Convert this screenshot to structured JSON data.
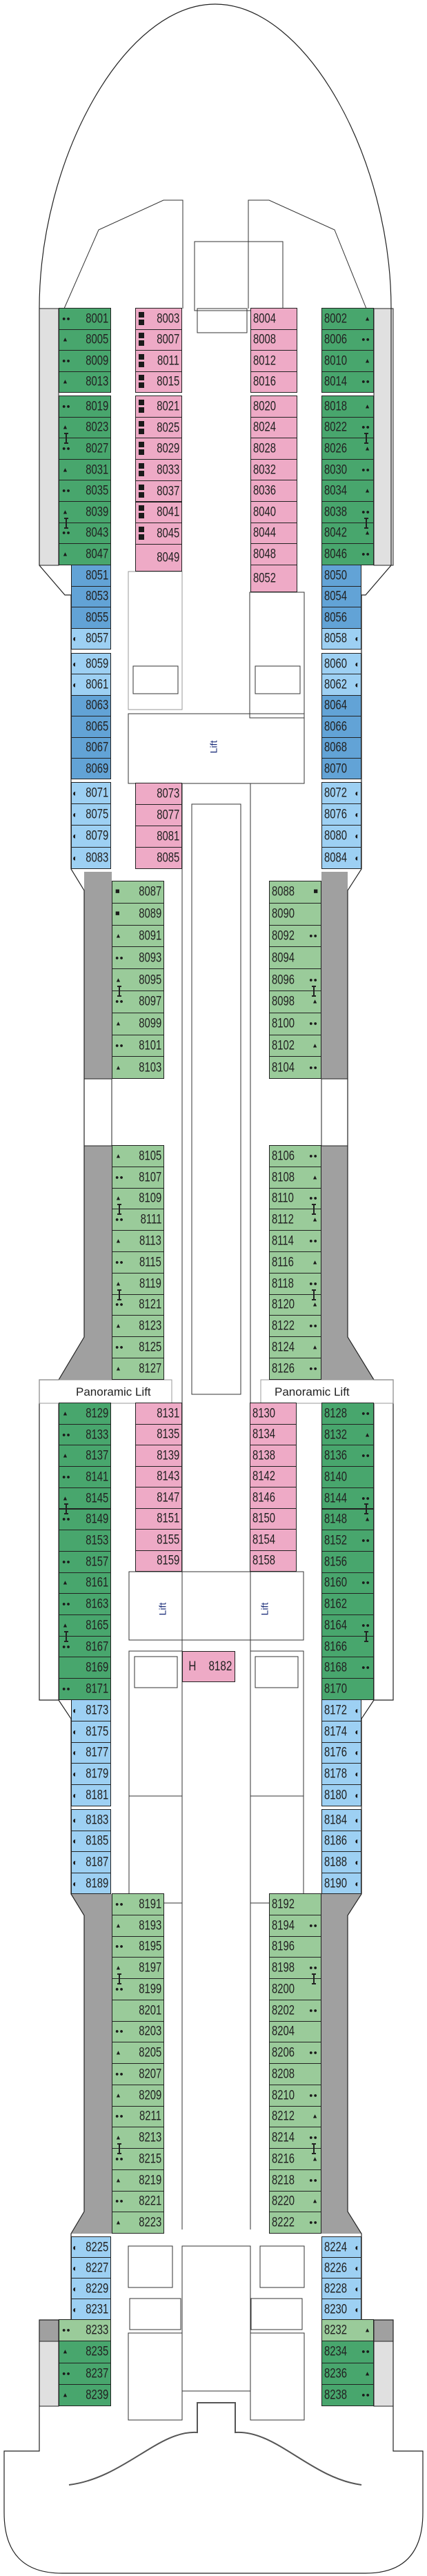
{
  "colors": {
    "green_dark": "#48a66d",
    "green_light": "#9acb9a",
    "pink": "#eeaac6",
    "blue_dark": "#62a3d6",
    "blue_light": "#9dd0f3",
    "grey_light": "#e0e0e0",
    "grey_dark": "#a0a0a0",
    "lift_text": "#1c2f7a"
  },
  "labels": {
    "lift_forward": "Lift",
    "lift_mid_port": "Lift",
    "lift_mid_starboard": "Lift",
    "panoramic_lift_port": "Panoramic Lift",
    "panoramic_lift_starboard": "Panoramic Lift"
  },
  "special_cabin": {
    "mark": "H",
    "no": "8182"
  },
  "blocks": [
    {
      "side": "port",
      "color": "green_dark",
      "cabins": [
        {
          "no": "8001",
          "icon": "dots"
        },
        {
          "no": "8005",
          "icon": "tri"
        },
        {
          "no": "8009",
          "icon": "dots"
        },
        {
          "no": "8013",
          "icon": "tri"
        }
      ]
    },
    {
      "side": "port",
      "color": "green_dark",
      "cabins": [
        {
          "no": "8019",
          "icon": "dots"
        },
        {
          "no": "8023",
          "icon": "tri",
          "link": "8027"
        },
        {
          "no": "8027",
          "icon": "dots"
        },
        {
          "no": "8031",
          "icon": "tri"
        },
        {
          "no": "8035",
          "icon": "dots"
        },
        {
          "no": "8039",
          "icon": "tri",
          "link": "8043"
        },
        {
          "no": "8043",
          "icon": "dots"
        },
        {
          "no": "8047",
          "icon": "tri"
        }
      ]
    },
    {
      "side": "starboard",
      "color": "green_dark",
      "cabins": [
        {
          "no": "8002",
          "icon": "tri"
        },
        {
          "no": "8006",
          "icon": "dots"
        },
        {
          "no": "8010",
          "icon": "tri"
        },
        {
          "no": "8014",
          "icon": "dots"
        }
      ]
    },
    {
      "side": "starboard",
      "color": "green_dark",
      "cabins": [
        {
          "no": "8018",
          "icon": "tri"
        },
        {
          "no": "8022",
          "icon": "dots",
          "link": "8026"
        },
        {
          "no": "8026",
          "icon": "tri"
        },
        {
          "no": "8030",
          "icon": "dots"
        },
        {
          "no": "8034",
          "icon": "tri"
        },
        {
          "no": "8038",
          "icon": "dots",
          "link": "8042"
        },
        {
          "no": "8042",
          "icon": "tri"
        },
        {
          "no": "8046",
          "icon": "dots"
        }
      ]
    },
    {
      "side": "port",
      "color": "pink",
      "cabins": [
        {
          "no": "8003",
          "icon": "squares"
        },
        {
          "no": "8007",
          "icon": "squares"
        },
        {
          "no": "8011",
          "icon": "squares"
        },
        {
          "no": "8015",
          "icon": "squares"
        }
      ]
    },
    {
      "side": "port",
      "color": "pink",
      "cabins": [
        {
          "no": "8021",
          "icon": "squares"
        },
        {
          "no": "8025",
          "icon": "squares"
        },
        {
          "no": "8029",
          "icon": "squares"
        },
        {
          "no": "8033",
          "icon": "squares"
        },
        {
          "no": "8037",
          "icon": "squares"
        },
        {
          "no": "8041",
          "icon": "squares"
        },
        {
          "no": "8045",
          "icon": "squares"
        }
      ]
    },
    {
      "side": "port",
      "color": "pink",
      "cabins": [
        {
          "no": "8049"
        }
      ]
    },
    {
      "side": "starboard",
      "color": "pink",
      "cabins": [
        {
          "no": "8004"
        },
        {
          "no": "8008"
        },
        {
          "no": "8012"
        },
        {
          "no": "8016"
        }
      ]
    },
    {
      "side": "starboard",
      "color": "pink",
      "cabins": [
        {
          "no": "8020"
        },
        {
          "no": "8024"
        },
        {
          "no": "8028"
        },
        {
          "no": "8032"
        },
        {
          "no": "8036"
        },
        {
          "no": "8040"
        },
        {
          "no": "8044"
        },
        {
          "no": "8048"
        }
      ]
    },
    {
      "side": "starboard",
      "color": "pink",
      "cabins": [
        {
          "no": "8052"
        }
      ]
    },
    {
      "side": "port",
      "color": "blue_dark",
      "cabins": [
        {
          "no": "8051"
        },
        {
          "no": "8053"
        },
        {
          "no": "8055"
        },
        {
          "no": "8057",
          "icon": "half",
          "color": "blue_light"
        }
      ]
    },
    {
      "side": "port",
      "color": "blue_dark",
      "cabins": [
        {
          "no": "8059",
          "icon": "half",
          "color": "blue_light"
        },
        {
          "no": "8061",
          "icon": "half",
          "color": "blue_light"
        },
        {
          "no": "8063"
        },
        {
          "no": "8065"
        },
        {
          "no": "8067"
        },
        {
          "no": "8069"
        }
      ]
    },
    {
      "side": "port",
      "color": "blue_light",
      "cabins": [
        {
          "no": "8071",
          "icon": "half"
        },
        {
          "no": "8075",
          "icon": "half"
        },
        {
          "no": "8079",
          "icon": "half"
        },
        {
          "no": "8083",
          "icon": "half"
        }
      ]
    },
    {
      "side": "starboard",
      "color": "blue_dark",
      "cabins": [
        {
          "no": "8050"
        },
        {
          "no": "8054"
        },
        {
          "no": "8056"
        },
        {
          "no": "8058",
          "icon": "half",
          "color": "blue_light"
        }
      ]
    },
    {
      "side": "starboard",
      "color": "blue_dark",
      "cabins": [
        {
          "no": "8060",
          "icon": "half",
          "color": "blue_light"
        },
        {
          "no": "8062",
          "icon": "half",
          "color": "blue_light"
        },
        {
          "no": "8064"
        },
        {
          "no": "8066"
        },
        {
          "no": "8068"
        },
        {
          "no": "8070"
        }
      ]
    },
    {
      "side": "starboard",
      "color": "blue_light",
      "cabins": [
        {
          "no": "8072",
          "icon": "half"
        },
        {
          "no": "8076",
          "icon": "half"
        },
        {
          "no": "8080",
          "icon": "half"
        },
        {
          "no": "8084",
          "icon": "half"
        }
      ]
    },
    {
      "side": "port",
      "color": "pink",
      "cabins": [
        {
          "no": "8073"
        },
        {
          "no": "8077"
        },
        {
          "no": "8081"
        },
        {
          "no": "8085"
        }
      ]
    },
    {
      "side": "port",
      "color": "green_light",
      "cabins": [
        {
          "no": "8087",
          "icon": "square"
        },
        {
          "no": "8089",
          "icon": "square"
        },
        {
          "no": "8091",
          "icon": "tri"
        },
        {
          "no": "8093",
          "icon": "dots"
        },
        {
          "no": "8095",
          "icon": "tri",
          "link": "8097"
        },
        {
          "no": "8097",
          "icon": "dots"
        },
        {
          "no": "8099",
          "icon": "tri"
        },
        {
          "no": "8101",
          "icon": "dots"
        },
        {
          "no": "8103",
          "icon": "tri"
        }
      ]
    },
    {
      "side": "starboard",
      "color": "green_light",
      "cabins": [
        {
          "no": "8088",
          "icon": "square"
        },
        {
          "no": "8090"
        },
        {
          "no": "8092",
          "icon": "dots"
        },
        {
          "no": "8094"
        },
        {
          "no": "8096",
          "icon": "dots",
          "link": "8098"
        },
        {
          "no": "8098",
          "icon": "tri"
        },
        {
          "no": "8100",
          "icon": "dots"
        },
        {
          "no": "8102",
          "icon": "tri"
        },
        {
          "no": "8104",
          "icon": "dots"
        }
      ]
    },
    {
      "side": "port",
      "color": "green_light",
      "cabins": [
        {
          "no": "8105",
          "icon": "tri"
        },
        {
          "no": "8107",
          "icon": "dots"
        },
        {
          "no": "8109",
          "icon": "tri",
          "link": "8111"
        },
        {
          "no": "8111",
          "icon": "dots"
        },
        {
          "no": "8113",
          "icon": "tri"
        },
        {
          "no": "8115",
          "icon": "dots"
        },
        {
          "no": "8119",
          "icon": "tri",
          "link": "8121"
        },
        {
          "no": "8121",
          "icon": "dots"
        },
        {
          "no": "8123",
          "icon": "tri"
        },
        {
          "no": "8125",
          "icon": "dots"
        },
        {
          "no": "8127",
          "icon": "tri"
        }
      ]
    },
    {
      "side": "starboard",
      "color": "green_light",
      "cabins": [
        {
          "no": "8106",
          "icon": "dots"
        },
        {
          "no": "8108",
          "icon": "tri"
        },
        {
          "no": "8110",
          "icon": "dots",
          "link": "8112"
        },
        {
          "no": "8112",
          "icon": "tri"
        },
        {
          "no": "8114",
          "icon": "dots"
        },
        {
          "no": "8116",
          "icon": "tri"
        },
        {
          "no": "8118",
          "icon": "dots",
          "link": "8120"
        },
        {
          "no": "8120",
          "icon": "tri"
        },
        {
          "no": "8122",
          "icon": "dots"
        },
        {
          "no": "8124",
          "icon": "tri"
        },
        {
          "no": "8126",
          "icon": "dots"
        }
      ]
    },
    {
      "side": "port",
      "color": "green_dark",
      "cabins": [
        {
          "no": "8129",
          "icon": "tri"
        },
        {
          "no": "8133",
          "icon": "dots"
        },
        {
          "no": "8137",
          "icon": "tri"
        },
        {
          "no": "8141",
          "icon": "dots"
        },
        {
          "no": "8145",
          "icon": "tri",
          "link": "8149"
        },
        {
          "no": "8149",
          "icon": "dots"
        },
        {
          "no": "8153"
        },
        {
          "no": "8157",
          "icon": "dots"
        },
        {
          "no": "8161",
          "icon": "tri"
        },
        {
          "no": "8163",
          "icon": "dots"
        },
        {
          "no": "8165",
          "icon": "tri",
          "link": "8167"
        },
        {
          "no": "8167",
          "icon": "dots"
        },
        {
          "no": "8169"
        },
        {
          "no": "8171",
          "icon": "dots"
        }
      ]
    },
    {
      "side": "starboard",
      "color": "green_dark",
      "cabins": [
        {
          "no": "8128",
          "icon": "dots"
        },
        {
          "no": "8132",
          "icon": "tri"
        },
        {
          "no": "8136",
          "icon": "dots"
        },
        {
          "no": "8140"
        },
        {
          "no": "8144",
          "icon": "dots",
          "link": "8148"
        },
        {
          "no": "8148",
          "icon": "tri"
        },
        {
          "no": "8152",
          "icon": "dots"
        },
        {
          "no": "8156"
        },
        {
          "no": "8160",
          "icon": "dots"
        },
        {
          "no": "8162"
        },
        {
          "no": "8164",
          "icon": "dots",
          "link": "8166"
        },
        {
          "no": "8166"
        },
        {
          "no": "8168",
          "icon": "dots"
        },
        {
          "no": "8170"
        }
      ]
    },
    {
      "side": "port",
      "color": "pink",
      "cabins": [
        {
          "no": "8131"
        },
        {
          "no": "8135"
        },
        {
          "no": "8139"
        },
        {
          "no": "8143"
        },
        {
          "no": "8147"
        },
        {
          "no": "8151"
        },
        {
          "no": "8155"
        },
        {
          "no": "8159"
        }
      ]
    },
    {
      "side": "starboard",
      "color": "pink",
      "cabins": [
        {
          "no": "8130"
        },
        {
          "no": "8134"
        },
        {
          "no": "8138"
        },
        {
          "no": "8142"
        },
        {
          "no": "8146"
        },
        {
          "no": "8150"
        },
        {
          "no": "8154"
        },
        {
          "no": "8158"
        }
      ]
    },
    {
      "side": "port",
      "color": "blue_light",
      "cabins": [
        {
          "no": "8173",
          "icon": "half"
        },
        {
          "no": "8175",
          "icon": "half"
        },
        {
          "no": "8177",
          "icon": "half"
        },
        {
          "no": "8179",
          "icon": "half"
        },
        {
          "no": "8181",
          "icon": "half"
        }
      ]
    },
    {
      "side": "port",
      "color": "blue_light",
      "cabins": [
        {
          "no": "8183",
          "icon": "half"
        },
        {
          "no": "8185",
          "icon": "half"
        },
        {
          "no": "8187",
          "icon": "half"
        },
        {
          "no": "8189",
          "icon": "half"
        }
      ]
    },
    {
      "side": "starboard",
      "color": "blue_light",
      "cabins": [
        {
          "no": "8172",
          "icon": "half"
        },
        {
          "no": "8174",
          "icon": "half"
        },
        {
          "no": "8176",
          "icon": "half"
        },
        {
          "no": "8178",
          "icon": "half"
        },
        {
          "no": "8180",
          "icon": "half"
        }
      ]
    },
    {
      "side": "starboard",
      "color": "blue_light",
      "cabins": [
        {
          "no": "8184",
          "icon": "half"
        },
        {
          "no": "8186",
          "icon": "half"
        },
        {
          "no": "8188",
          "icon": "half"
        },
        {
          "no": "8190",
          "icon": "half"
        }
      ]
    },
    {
      "side": "port",
      "color": "green_light",
      "cabins": [
        {
          "no": "8191",
          "icon": "dots"
        },
        {
          "no": "8193",
          "icon": "tri"
        },
        {
          "no": "8195",
          "icon": "dots"
        },
        {
          "no": "8197",
          "icon": "tri",
          "link": "8199"
        },
        {
          "no": "8199",
          "icon": "dots"
        },
        {
          "no": "8201"
        },
        {
          "no": "8203",
          "icon": "dots"
        },
        {
          "no": "8205",
          "icon": "tri"
        },
        {
          "no": "8207",
          "icon": "dots"
        },
        {
          "no": "8209",
          "icon": "tri"
        },
        {
          "no": "8211",
          "icon": "dots"
        },
        {
          "no": "8213",
          "icon": "tri",
          "link": "8215"
        },
        {
          "no": "8215",
          "icon": "dots"
        },
        {
          "no": "8219",
          "icon": "tri"
        },
        {
          "no": "8221",
          "icon": "dots"
        },
        {
          "no": "8223",
          "icon": "tri"
        }
      ]
    },
    {
      "side": "starboard",
      "color": "green_light",
      "cabins": [
        {
          "no": "8192"
        },
        {
          "no": "8194",
          "icon": "dots"
        },
        {
          "no": "8196"
        },
        {
          "no": "8198",
          "icon": "dots",
          "link": "8200"
        },
        {
          "no": "8200"
        },
        {
          "no": "8202",
          "icon": "dots"
        },
        {
          "no": "8204"
        },
        {
          "no": "8206",
          "icon": "dots"
        },
        {
          "no": "8208"
        },
        {
          "no": "8210",
          "icon": "dots"
        },
        {
          "no": "8212",
          "icon": "tri"
        },
        {
          "no": "8214",
          "icon": "dots",
          "link": "8216"
        },
        {
          "no": "8216",
          "icon": "tri"
        },
        {
          "no": "8218",
          "icon": "dots"
        },
        {
          "no": "8220",
          "icon": "tri"
        },
        {
          "no": "8222",
          "icon": "dots"
        }
      ]
    },
    {
      "side": "port",
      "color": "blue_light",
      "cabins": [
        {
          "no": "8225",
          "icon": "half"
        },
        {
          "no": "8227",
          "icon": "half"
        },
        {
          "no": "8229",
          "icon": "half"
        },
        {
          "no": "8231",
          "icon": "half"
        }
      ]
    },
    {
      "side": "starboard",
      "color": "blue_light",
      "cabins": [
        {
          "no": "8224",
          "icon": "half"
        },
        {
          "no": "8226",
          "icon": "half"
        },
        {
          "no": "8228",
          "icon": "half"
        },
        {
          "no": "8230",
          "icon": "half"
        }
      ]
    },
    {
      "side": "port",
      "color": "green_dark",
      "cabins": [
        {
          "no": "8233",
          "icon": "dots",
          "color": "green_light"
        },
        {
          "no": "8235",
          "icon": "tri"
        },
        {
          "no": "8237",
          "icon": "dots"
        },
        {
          "no": "8239",
          "icon": "tri"
        }
      ]
    },
    {
      "side": "starboard",
      "color": "green_dark",
      "cabins": [
        {
          "no": "8232",
          "icon": "tri",
          "color": "green_light"
        },
        {
          "no": "8234",
          "icon": "dots"
        },
        {
          "no": "8236",
          "icon": "tri"
        },
        {
          "no": "8238",
          "icon": "dots"
        }
      ]
    }
  ]
}
